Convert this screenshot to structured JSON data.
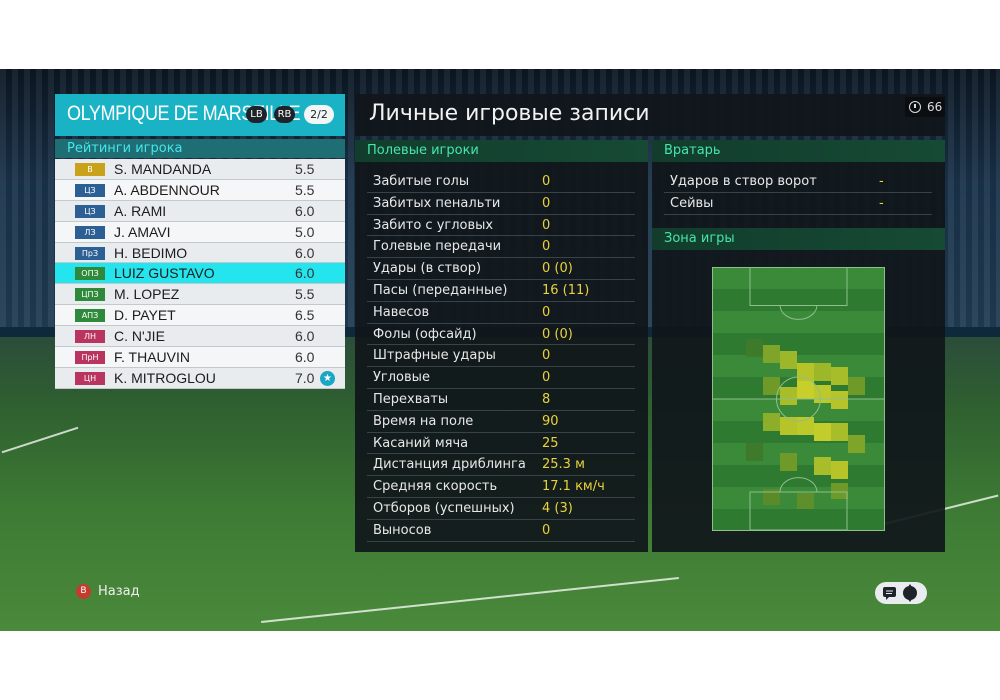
{
  "team": {
    "name": "OLYMPIQUE DE MARSEILLE",
    "lb": "LB",
    "rb": "RB",
    "page": "2/2"
  },
  "ratings": {
    "title": "Рейтинги игрока",
    "players": [
      {
        "pos": "В",
        "pos_color": "#c9a21a",
        "name": "S. MANDANDA",
        "rating": "5.5"
      },
      {
        "pos": "ЦЗ",
        "pos_color": "#2c5f93",
        "name": "A. ABDENNOUR",
        "rating": "5.5"
      },
      {
        "pos": "ЦЗ",
        "pos_color": "#2c5f93",
        "name": "A. RAMI",
        "rating": "6.0"
      },
      {
        "pos": "ЛЗ",
        "pos_color": "#2c5f93",
        "name": "J. AMAVI",
        "rating": "5.0"
      },
      {
        "pos": "ПрЗ",
        "pos_color": "#2c5f93",
        "name": "H. BEDIMO",
        "rating": "6.0"
      },
      {
        "pos": "ОПЗ",
        "pos_color": "#2e8a3a",
        "name": "LUIZ GUSTAVO",
        "rating": "6.0"
      },
      {
        "pos": "ЦПЗ",
        "pos_color": "#2e8a3a",
        "name": "M. LOPEZ",
        "rating": "5.5"
      },
      {
        "pos": "АПЗ",
        "pos_color": "#2e8a3a",
        "name": "D. PAYET",
        "rating": "6.5"
      },
      {
        "pos": "ЛН",
        "pos_color": "#b9345e",
        "name": "C. N'JIE",
        "rating": "6.0"
      },
      {
        "pos": "ПрН",
        "pos_color": "#b9345e",
        "name": "F. THAUVIN",
        "rating": "6.0"
      },
      {
        "pos": "ЦН",
        "pos_color": "#b9345e",
        "name": "K. MITROGLOU",
        "rating": "7.0",
        "star": "★"
      }
    ],
    "selected_index": 5
  },
  "main": {
    "title": "Личные игровые записи",
    "timer": "66"
  },
  "field": {
    "title": "Полевые игроки",
    "rows": [
      {
        "label": "Забитые голы",
        "value": "0"
      },
      {
        "label": "Забитых пенальти",
        "value": "0"
      },
      {
        "label": "Забито с угловых",
        "value": "0"
      },
      {
        "label": "Голевые передачи",
        "value": "0"
      },
      {
        "label": "Удары (в створ)",
        "value": "0 (0)"
      },
      {
        "label": "Пасы (переданные)",
        "value": "16 (11)"
      },
      {
        "label": "Навесов",
        "value": "0"
      },
      {
        "label": "Фолы (офсайд)",
        "value": "0 (0)"
      },
      {
        "label": "Штрафные удары",
        "value": "0"
      },
      {
        "label": "Угловые",
        "value": "0"
      },
      {
        "label": "Перехваты",
        "value": "8"
      },
      {
        "label": "Время на поле",
        "value": "90"
      },
      {
        "label": "Касаний мяча",
        "value": "25"
      },
      {
        "label": "Дистанция дриблинга",
        "value": "25.3 м"
      },
      {
        "label": "Средняя скорость",
        "value": "17.1 км/ч"
      },
      {
        "label": "Отборов (успешных)",
        "value": "4 (3)"
      },
      {
        "label": "Выносов",
        "value": "0"
      }
    ]
  },
  "goalkeeper": {
    "title": "Вратарь",
    "rows": [
      {
        "label": "Ударов в створ ворот",
        "value": "-"
      },
      {
        "label": "Сейвы",
        "value": "-"
      }
    ]
  },
  "zone": {
    "title": "Зона игры"
  },
  "footer": {
    "back_button": "B",
    "back_label": "Назад"
  },
  "colors": {
    "accent": "#1ab3c6",
    "highlight": "#24e5ee",
    "stat_value": "#e9d23c",
    "section_text": "#47e6a9"
  }
}
